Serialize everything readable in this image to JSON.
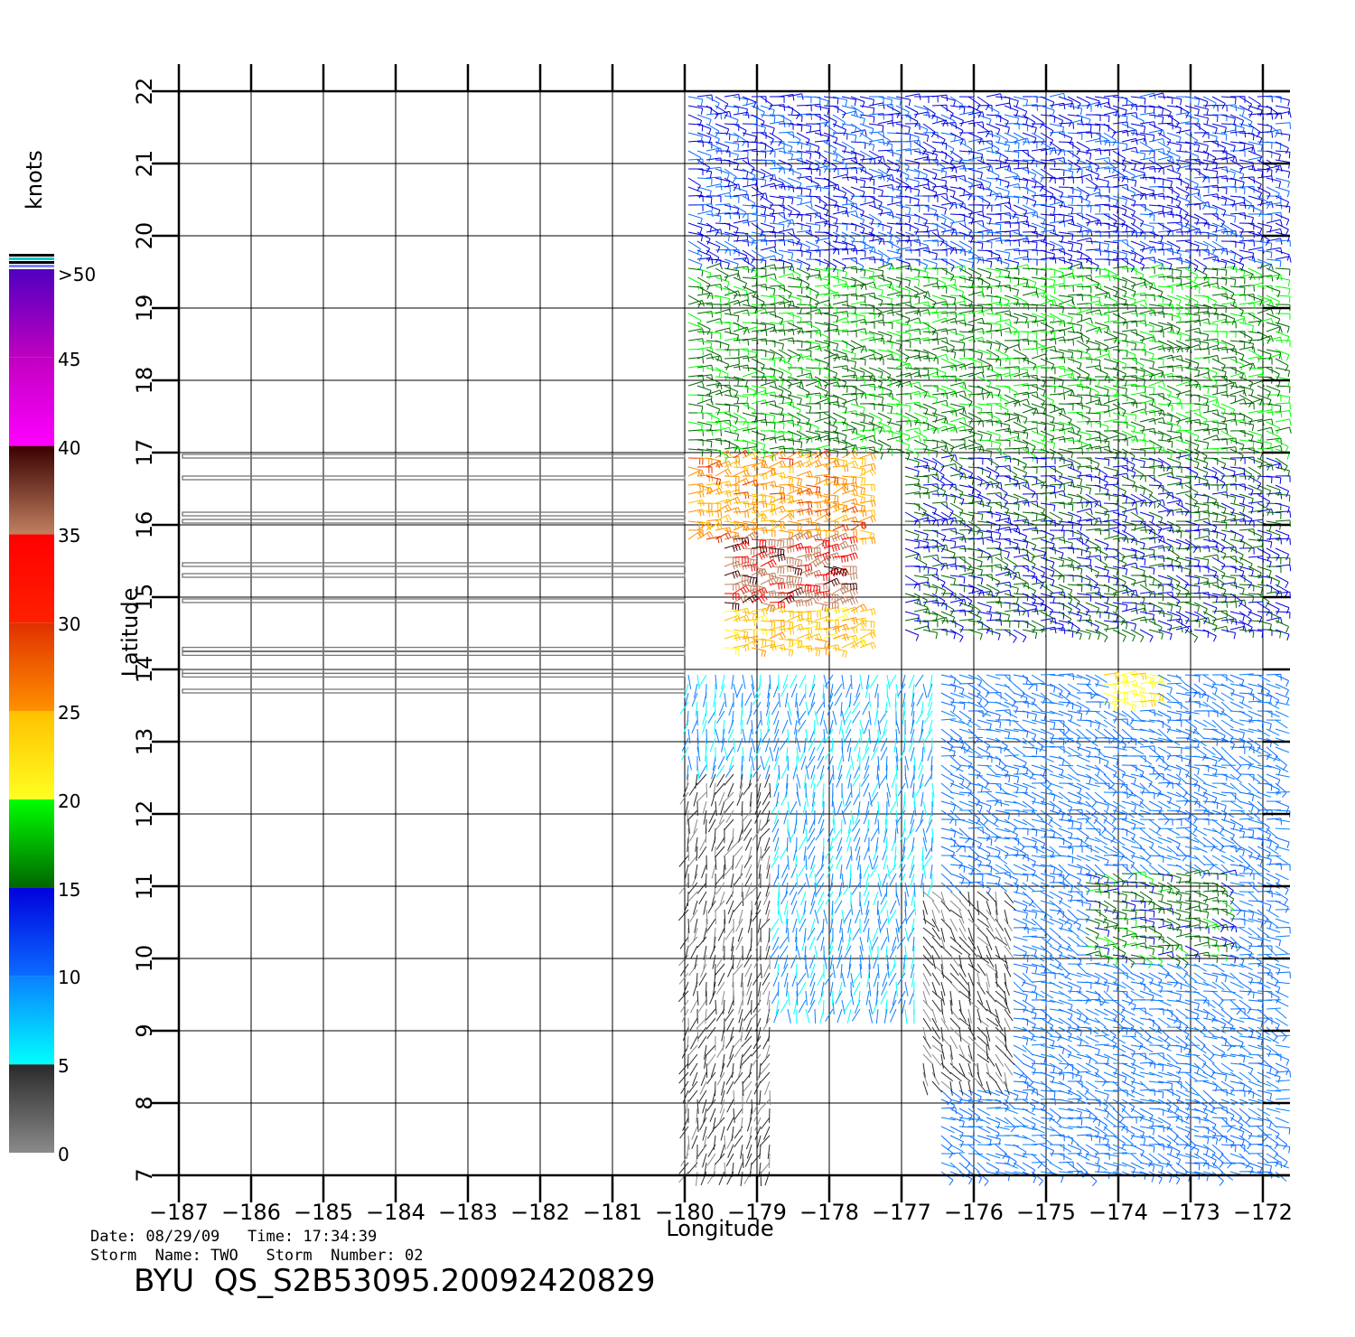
{
  "chart_data": {
    "type": "scatter",
    "subtype": "wind-barb map",
    "xlabel": "Longitude",
    "ylabel": "Latitude",
    "xlim": [
      -187,
      -171.6
    ],
    "ylim": [
      7,
      22
    ],
    "x_ticks": [
      "−187",
      "−186",
      "−185",
      "−184",
      "−183",
      "−182",
      "−181",
      "−180",
      "−179",
      "−178",
      "−177",
      "−176",
      "−175",
      "−174",
      "−173",
      "−172"
    ],
    "x_tick_values": [
      -187,
      -186,
      -185,
      -184,
      -183,
      -182,
      -181,
      -180,
      -179,
      -178,
      -177,
      -176,
      -175,
      -174,
      -173,
      -172
    ],
    "y_ticks": [
      "7",
      "8",
      "9",
      "10",
      "11",
      "12",
      "13",
      "14",
      "15",
      "16",
      "17",
      "18",
      "19",
      "20",
      "21",
      "22"
    ],
    "y_tick_values": [
      7,
      8,
      9,
      10,
      11,
      12,
      13,
      14,
      15,
      16,
      17,
      18,
      19,
      20,
      21,
      22
    ],
    "grid": true,
    "swath_lon_range": [
      -180,
      -171.6
    ],
    "colorbar": {
      "unit": "knots",
      "labels": [
        "0",
        "5",
        "10",
        "15",
        "20",
        "25",
        "30",
        "35",
        "40",
        "45",
        ">50"
      ],
      "segments": [
        {
          "from": 0,
          "to": 5,
          "colors": [
            "#8a8a8a",
            "#2a2a2a"
          ]
        },
        {
          "from": 5,
          "to": 10,
          "colors": [
            "#00ffff",
            "#0a80ff"
          ]
        },
        {
          "from": 10,
          "to": 15,
          "colors": [
            "#0a6cff",
            "#0000dd"
          ]
        },
        {
          "from": 15,
          "to": 20,
          "colors": [
            "#006600",
            "#00ff00"
          ]
        },
        {
          "from": 20,
          "to": 25,
          "colors": [
            "#ffff20",
            "#ffc000"
          ]
        },
        {
          "from": 25,
          "to": 30,
          "colors": [
            "#ff9000",
            "#e03000"
          ]
        },
        {
          "from": 30,
          "to": 35,
          "colors": [
            "#ff2000",
            "#ff0000"
          ]
        },
        {
          "from": 35,
          "to": 40,
          "colors": [
            "#c08060",
            "#3a0000"
          ]
        },
        {
          "from": 40,
          "to": 45,
          "colors": [
            "#ff00ff",
            "#c000c0"
          ]
        },
        {
          "from": 45,
          "to": 50,
          "colors": [
            "#c000c0",
            "#5000c0"
          ]
        }
      ]
    },
    "wind_regions": [
      {
        "lon": [
          -180,
          -171.6
        ],
        "lat": [
          19.6,
          22
        ],
        "speed_kt": 13,
        "dir_deg": 100
      },
      {
        "lon": [
          -180,
          -171.6
        ],
        "lat": [
          17,
          19.6
        ],
        "speed_kt": 17,
        "dir_deg": 95
      },
      {
        "lon": [
          -177,
          -171.6
        ],
        "lat": [
          14.5,
          17
        ],
        "speed_kt": 15,
        "dir_deg": 100
      },
      {
        "lon": [
          -180,
          -177.5
        ],
        "lat": [
          15.8,
          17
        ],
        "speed_kt": 26,
        "dir_deg": 80
      },
      {
        "lon": [
          -179.5,
          -177.8
        ],
        "lat": [
          14.8,
          15.8
        ],
        "speed_kt": 36,
        "dir_deg": 80
      },
      {
        "lon": [
          -179.5,
          -177.5
        ],
        "lat": [
          14.3,
          14.8
        ],
        "speed_kt": 24,
        "dir_deg": 80
      },
      {
        "lon": [
          -180,
          -176.5
        ],
        "lat": [
          9.2,
          14
        ],
        "speed_kt": 8,
        "dir_deg": 190
      },
      {
        "lon": [
          -180,
          -178.8
        ],
        "lat": [
          7,
          12.6
        ],
        "speed_kt": 3,
        "dir_deg": 200
      },
      {
        "lon": [
          -176.5,
          -171.6
        ],
        "lat": [
          7,
          14
        ],
        "speed_kt": 10,
        "dir_deg": 110
      },
      {
        "lon": [
          -176.8,
          -175.5
        ],
        "lat": [
          8.2,
          11
        ],
        "speed_kt": 3,
        "dir_deg": 150
      },
      {
        "lon": [
          -174.5,
          -172.5
        ],
        "lat": [
          10,
          11.2
        ],
        "speed_kt": 16,
        "dir_deg": 100
      },
      {
        "lon": [
          -174.2,
          -173.5
        ],
        "lat": [
          13.5,
          14
        ],
        "speed_kt": 22,
        "dir_deg": 90
      }
    ]
  },
  "footer": {
    "date_line": "Date: 08/29/09   Time: 17:34:39",
    "storm_line": "Storm  Name: TWO   Storm  Number: 02",
    "title": "BYU  QS_S2B53095.20092420829"
  }
}
